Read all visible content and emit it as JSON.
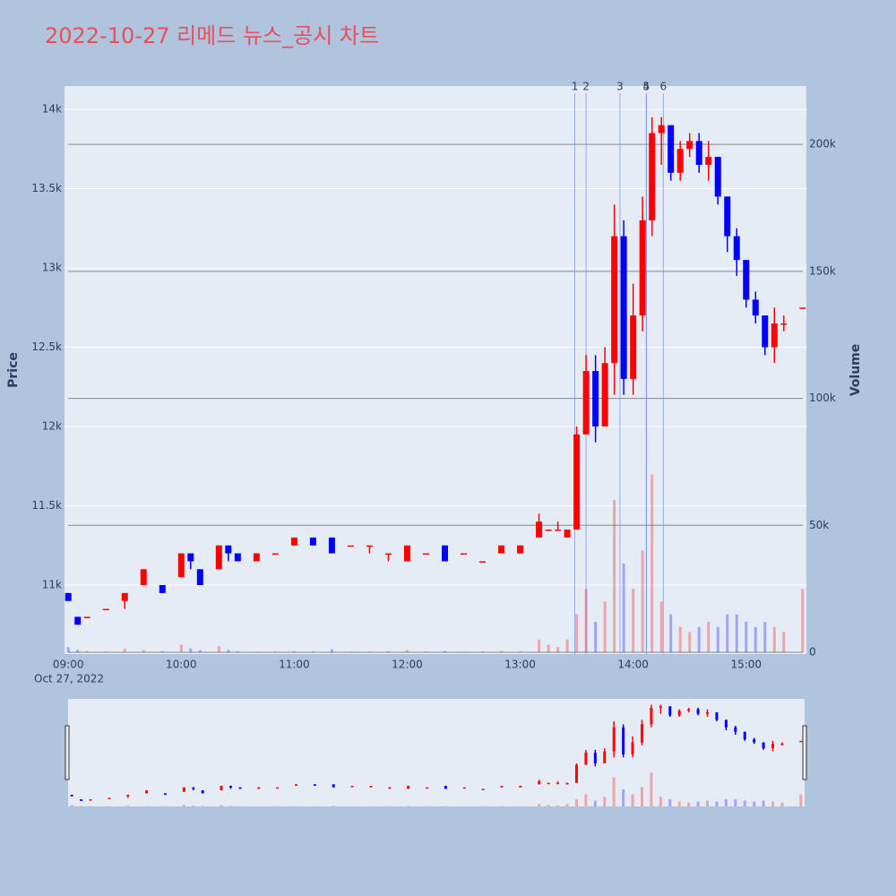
{
  "chart_data": {
    "type": "candlestick",
    "title": "2022-10-27 리메드 뉴스_공시 차트",
    "title_color": "#e8505b",
    "ylabel": "Price",
    "y2label": "Volume",
    "x_sublabel": "Oct 27, 2022",
    "up_color": "#ff0000",
    "down_color": "#0000ff",
    "xlim": [
      "08:58",
      "15:32"
    ],
    "xticks": [
      "09:00",
      "10:00",
      "11:00",
      "12:00",
      "13:00",
      "14:00",
      "15:00"
    ],
    "ylim": [
      10565,
      14147
    ],
    "yticks": [
      {
        "value": 11000,
        "label": "11k"
      },
      {
        "value": 11500,
        "label": "11.5k"
      },
      {
        "value": 12000,
        "label": "12k"
      },
      {
        "value": 12500,
        "label": "12.5k"
      },
      {
        "value": 13000,
        "label": "13k"
      },
      {
        "value": 13500,
        "label": "13.5k"
      },
      {
        "value": 14000,
        "label": "14k"
      }
    ],
    "y2lim": [
      0,
      223000
    ],
    "y2ticks": [
      0,
      {
        "value": 50000,
        "label": "50k"
      },
      {
        "value": 100000,
        "label": "100k"
      },
      {
        "value": 150000,
        "label": "150k"
      },
      {
        "value": 200000,
        "label": "200k"
      }
    ],
    "annotations": [
      {
        "label": "1",
        "x": "13:29"
      },
      {
        "label": "2",
        "x": "13:35"
      },
      {
        "label": "3",
        "x": "13:53"
      },
      {
        "label": "4",
        "x": "14:07"
      },
      {
        "label": "5",
        "x": "14:07"
      },
      {
        "label": "6",
        "x": "14:16"
      }
    ],
    "x": [
      "09:00",
      "09:05",
      "09:10",
      "09:20",
      "09:30",
      "09:40",
      "09:50",
      "10:00",
      "10:05",
      "10:10",
      "10:20",
      "10:25",
      "10:30",
      "10:40",
      "10:50",
      "11:00",
      "11:10",
      "11:20",
      "11:30",
      "11:40",
      "11:50",
      "12:00",
      "12:10",
      "12:20",
      "12:30",
      "12:40",
      "12:50",
      "13:00",
      "13:10",
      "13:15",
      "13:20",
      "13:25",
      "13:30",
      "13:35",
      "13:40",
      "13:45",
      "13:50",
      "13:55",
      "14:00",
      "14:05",
      "14:10",
      "14:15",
      "14:20",
      "14:25",
      "14:30",
      "14:35",
      "14:40",
      "14:45",
      "14:50",
      "14:55",
      "15:00",
      "15:05",
      "15:10",
      "15:15",
      "15:20",
      "15:30"
    ],
    "open": [
      10950,
      10800,
      10800,
      10850,
      10900,
      11000,
      11000,
      11050,
      11200,
      11100,
      11100,
      11250,
      11200,
      11150,
      11200,
      11250,
      11300,
      11300,
      11250,
      11250,
      11200,
      11150,
      11200,
      11250,
      11200,
      11150,
      11200,
      11200,
      11300,
      11350,
      11350,
      11300,
      11350,
      11950,
      12350,
      12000,
      12400,
      13200,
      12300,
      12700,
      13300,
      13850,
      13900,
      13600,
      13750,
      13800,
      13650,
      13700,
      13450,
      13200,
      13050,
      12800,
      12700,
      12500,
      12650,
      12750
    ],
    "high": [
      10950,
      10800,
      10800,
      10850,
      10950,
      11100,
      11000,
      11200,
      11200,
      11100,
      11250,
      11250,
      11200,
      11200,
      11200,
      11300,
      11300,
      11300,
      11250,
      11250,
      11200,
      11250,
      11200,
      11250,
      11200,
      11150,
      11250,
      11250,
      11450,
      11350,
      11400,
      11350,
      12000,
      12450,
      12450,
      12500,
      13400,
      13300,
      12900,
      13450,
      13950,
      13950,
      13900,
      13800,
      13850,
      13850,
      13800,
      13700,
      13450,
      13250,
      13050,
      12850,
      12700,
      12750,
      12700,
      12750
    ],
    "low": [
      10900,
      10750,
      10800,
      10850,
      10850,
      11000,
      10950,
      11050,
      11100,
      11000,
      11100,
      11150,
      11150,
      11150,
      11200,
      11250,
      11250,
      11200,
      11250,
      11200,
      11150,
      11150,
      11200,
      11150,
      11200,
      11150,
      11200,
      11200,
      11300,
      11350,
      11350,
      11300,
      11350,
      11950,
      11900,
      12000,
      12200,
      12200,
      12200,
      12600,
      13200,
      13650,
      13550,
      13550,
      13700,
      13600,
      13550,
      13400,
      13100,
      12950,
      12750,
      12650,
      12450,
      12400,
      12600,
      12750
    ],
    "close": [
      10900,
      10750,
      10800,
      10850,
      10950,
      11100,
      10950,
      11200,
      11150,
      11000,
      11250,
      11200,
      11150,
      11200,
      11200,
      11300,
      11250,
      11200,
      11250,
      11250,
      11200,
      11250,
      11200,
      11150,
      11200,
      11150,
      11250,
      11250,
      11400,
      11350,
      11350,
      11350,
      11950,
      12350,
      12000,
      12400,
      13200,
      12300,
      12700,
      13300,
      13850,
      13900,
      13600,
      13750,
      13800,
      13650,
      13700,
      13450,
      13200,
      13050,
      12800,
      12700,
      12500,
      12650,
      12650,
      12750
    ],
    "volume": [
      2000,
      1000,
      500,
      300,
      1500,
      800,
      400,
      3000,
      1500,
      800,
      2500,
      1000,
      300,
      200,
      300,
      400,
      300,
      1200,
      200,
      300,
      400,
      900,
      300,
      500,
      200,
      300,
      500,
      400,
      5000,
      3000,
      2000,
      5000,
      15000,
      25000,
      12000,
      20000,
      60000,
      35000,
      25000,
      40000,
      70000,
      20000,
      15000,
      10000,
      8000,
      10000,
      12000,
      10000,
      15000,
      15000,
      12000,
      10000,
      12000,
      10000,
      8000,
      25000
    ]
  }
}
